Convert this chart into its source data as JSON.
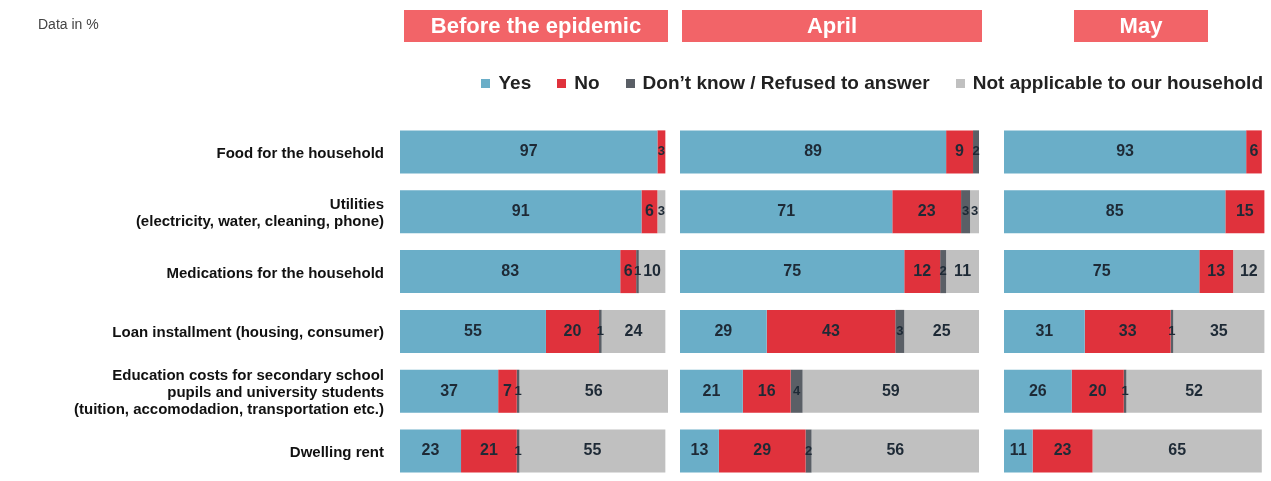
{
  "chart_data": [
    {
      "type": "bar",
      "orientation": "horizontal",
      "stacked": true,
      "title": "Before the epidemic",
      "annotations": [
        "Data in %"
      ],
      "categories": [
        "Food for the household",
        "Utilities\n(electricity, water, cleaning, phone)",
        "Medications for the household",
        "Loan installment (housing, consumer)",
        "Education costs for secondary school\npupils and university students\n(tuition, accomodadion, transportation etc.)",
        "Dwelling rent"
      ],
      "series": [
        {
          "name": "Yes",
          "color": "#6aaec8",
          "values": [
            97,
            91,
            83,
            55,
            37,
            23
          ]
        },
        {
          "name": "No",
          "color": "#e0323c",
          "values": [
            3,
            6,
            6,
            20,
            7,
            21
          ]
        },
        {
          "name": "Don’t know / Refused to answer",
          "color": "#5a5f66",
          "values": [
            null,
            null,
            1,
            1,
            1,
            1
          ]
        },
        {
          "name": "Not applicable to our household",
          "color": "#c0c0c0",
          "values": [
            null,
            3,
            10,
            24,
            56,
            55
          ]
        }
      ],
      "xlim": [
        0,
        101
      ],
      "data_labels": true,
      "tick_labels": "y",
      "legend": "top"
    },
    {
      "type": "bar",
      "orientation": "horizontal",
      "stacked": true,
      "title": "April",
      "categories": [
        null,
        null,
        null,
        null,
        null,
        null
      ],
      "series": [
        {
          "color": "#6aaec8",
          "values": [
            89,
            71,
            75,
            29,
            21,
            13
          ]
        },
        {
          "color": "#e0323c",
          "values": [
            9,
            23,
            12,
            43,
            16,
            29
          ]
        },
        {
          "color": "#5a5f66",
          "values": [
            2,
            3,
            2,
            3,
            4,
            2
          ]
        },
        {
          "color": "#c0c0c0",
          "values": [
            null,
            3,
            11,
            25,
            59,
            56
          ]
        }
      ],
      "xlim": [
        0,
        101
      ],
      "data_labels": true,
      "tick_labels": false
    },
    {
      "type": "bar",
      "orientation": "horizontal",
      "stacked": true,
      "title": "May",
      "categories": [
        null,
        null,
        null,
        null,
        null,
        null
      ],
      "series": [
        {
          "color": "#6aaec8",
          "values": [
            93,
            85,
            75,
            31,
            26,
            11
          ]
        },
        {
          "color": "#e0323c",
          "values": [
            6,
            15,
            13,
            33,
            20,
            23
          ]
        },
        {
          "color": "#5a5f66",
          "values": [
            null,
            null,
            null,
            1,
            1,
            null
          ]
        },
        {
          "color": "#c0c0c0",
          "values": [
            null,
            null,
            12,
            35,
            52,
            65
          ]
        }
      ],
      "xlim": [
        0,
        101
      ],
      "data_labels": true,
      "tick_labels": false
    }
  ]
}
